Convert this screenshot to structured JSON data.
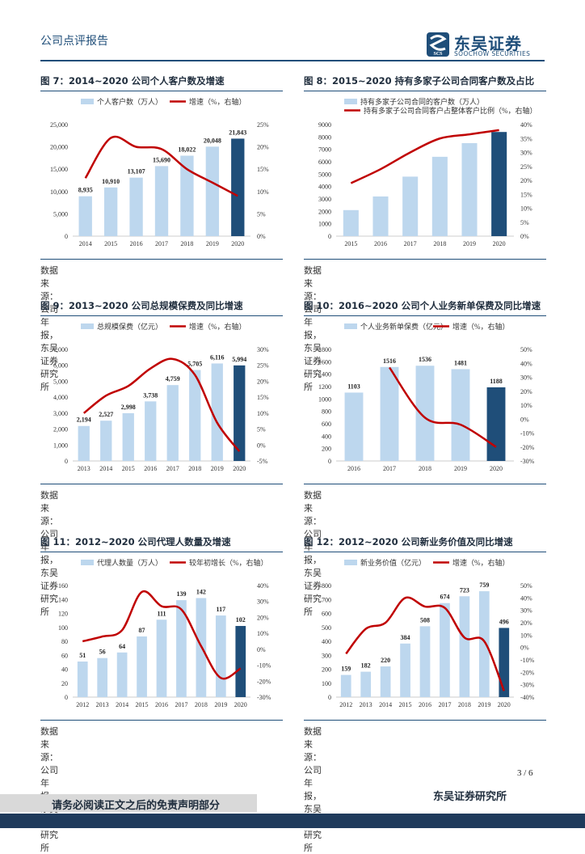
{
  "header": {
    "report_type": "公司点评报告",
    "logo_cn": "东吴证券",
    "logo_en": "SOOCHOW SECURITIES",
    "logo_mark_text": "SCS"
  },
  "colors": {
    "bar": "#bdd7ee",
    "bar_highlight": "#1f4e79",
    "line": "#c00000",
    "rule": "#1f4e79"
  },
  "source_text": "数据来源：公司年报，东吴证券研究所",
  "page": {
    "number": "3 / 6"
  },
  "footer": {
    "disclaimer": "请务必阅读正文之后的免责声明部分",
    "firm": "东吴证券研究所"
  },
  "charts": [
    {
      "id": "fig7",
      "title": "图 7：2014~2020 公司个人客户数及增速",
      "bar_legend": "个人客户数（万人）",
      "line_legend": "增速（%，右轴）",
      "categories": [
        "2014",
        "2015",
        "2016",
        "2017",
        "2018",
        "2019",
        "2020"
      ],
      "bar_values": [
        8935,
        10910,
        13107,
        15690,
        18022,
        20048,
        21843
      ],
      "bar_labels": [
        "8,935",
        "10,910",
        "13,107",
        "15,690",
        "18,022",
        "20,048",
        "21,843"
      ],
      "line_values": [
        13,
        22,
        20,
        19.5,
        15,
        12,
        9
      ],
      "left_ticks": [
        "0",
        "5,000",
        "10,000",
        "15,000",
        "20,000",
        "25,000"
      ],
      "left_min": 0,
      "left_max": 25000,
      "right_ticks": [
        "0%",
        "5%",
        "10%",
        "15%",
        "20%",
        "25%"
      ],
      "right_min": 0,
      "right_max": 25,
      "highlight_last": true,
      "line_start": 0
    },
    {
      "id": "fig8",
      "title": "图 8：2015~2020 持有多家子公司合同客户数及占比",
      "bar_legend": "持有多家子公司合同的客户数（万人）",
      "line_legend": "持有多家子公司合同客户占整体客户比例（%，右轴）",
      "categories": [
        "2015",
        "2016",
        "2017",
        "2018",
        "2019",
        "2020"
      ],
      "bar_values": [
        2100,
        3200,
        4800,
        6400,
        7500,
        8400
      ],
      "bar_labels": [
        "",
        "",
        "",
        "",
        "",
        ""
      ],
      "line_values": [
        19,
        24,
        30,
        35,
        36.5,
        38
      ],
      "left_ticks": [
        "0",
        "1000",
        "2000",
        "3000",
        "4000",
        "5000",
        "6000",
        "7000",
        "8000",
        "9000"
      ],
      "left_min": 0,
      "left_max": 9000,
      "right_ticks": [
        "0%",
        "5%",
        "10%",
        "15%",
        "20%",
        "25%",
        "30%",
        "35%",
        "40%"
      ],
      "right_min": 0,
      "right_max": 40,
      "highlight_last": true,
      "line_start": 0
    },
    {
      "id": "fig9",
      "title": "图 9：2013~2020 公司总规模保费及同比增速",
      "bar_legend": "总规模保费（亿元）",
      "line_legend": "增速（%，右轴）",
      "categories": [
        "2013",
        "2014",
        "2015",
        "2016",
        "2017",
        "2018",
        "2019",
        "2020"
      ],
      "bar_values": [
        2194,
        2527,
        2998,
        3738,
        4759,
        5705,
        6116,
        5994
      ],
      "bar_labels": [
        "2,194",
        "2,527",
        "2,998",
        "3,738",
        "4,759",
        "5,705",
        "6,116",
        "5,994"
      ],
      "line_values": [
        10,
        15.5,
        18.5,
        24,
        27,
        22,
        7,
        -2
      ],
      "left_ticks": [
        "0",
        "1,000",
        "2,000",
        "3,000",
        "4,000",
        "5,000",
        "6,000",
        "7,000"
      ],
      "left_min": 0,
      "left_max": 7000,
      "right_ticks": [
        "-5%",
        "0%",
        "5%",
        "10%",
        "15%",
        "20%",
        "25%",
        "30%"
      ],
      "right_min": -5,
      "right_max": 30,
      "highlight_last": true,
      "line_start": 0
    },
    {
      "id": "fig10",
      "title": "图 10：2016~2020 公司个人业务新单保费及同比增速",
      "bar_legend": "个人业务新单保费（亿元）",
      "line_legend": "增速（%，右轴）",
      "categories": [
        "2016",
        "2017",
        "2018",
        "2019",
        "2020"
      ],
      "bar_values": [
        1103,
        1516,
        1536,
        1481,
        1188
      ],
      "bar_labels": [
        "1103",
        "1516",
        "1536",
        "1481",
        "1188"
      ],
      "line_values": [
        null,
        37,
        1,
        -4,
        -20
      ],
      "left_ticks": [
        "0",
        "200",
        "400",
        "600",
        "800",
        "1000",
        "1200",
        "1400",
        "1600",
        "1800"
      ],
      "left_min": 0,
      "left_max": 1800,
      "right_ticks": [
        "-30%",
        "-20%",
        "-10%",
        "0%",
        "10%",
        "20%",
        "30%",
        "40%",
        "50%"
      ],
      "right_min": -30,
      "right_max": 50,
      "highlight_last": true,
      "line_start": 1
    },
    {
      "id": "fig11",
      "title": "图 11：2012~2020 公司代理人数量及增速",
      "bar_legend": "代理人数量（万人）",
      "line_legend": "较年初增长（%，右轴）",
      "categories": [
        "2012",
        "2013",
        "2014",
        "2015",
        "2016",
        "2017",
        "2018",
        "2019",
        "2020"
      ],
      "bar_values": [
        51,
        56,
        64,
        87,
        111,
        139,
        142,
        117,
        102
      ],
      "bar_labels": [
        "51",
        "56",
        "64",
        "87",
        "111",
        "139",
        "142",
        "117",
        "102"
      ],
      "line_values": [
        5,
        8,
        12,
        36,
        27,
        25,
        2,
        -18,
        -12
      ],
      "left_ticks": [
        "0",
        "20",
        "40",
        "60",
        "80",
        "100",
        "120",
        "140",
        "160"
      ],
      "left_min": 0,
      "left_max": 160,
      "right_ticks": [
        "-30%",
        "-20%",
        "-10%",
        "0%",
        "10%",
        "20%",
        "30%",
        "40%"
      ],
      "right_min": -30,
      "right_max": 40,
      "highlight_last": true,
      "line_start": 0
    },
    {
      "id": "fig12",
      "title": "图 12：2012~2020 公司新业务价值及同比增速",
      "bar_legend": "新业务价值（亿元）",
      "line_legend": "增速（%，右轴）",
      "categories": [
        "2012",
        "2013",
        "2014",
        "2015",
        "2016",
        "2017",
        "2018",
        "2019",
        "2020"
      ],
      "bar_values": [
        159,
        182,
        220,
        384,
        508,
        674,
        723,
        759,
        496
      ],
      "bar_labels": [
        "159",
        "182",
        "220",
        "384",
        "508",
        "674",
        "723",
        "759",
        "496"
      ],
      "line_values": [
        -5,
        15,
        20,
        40,
        33,
        32,
        8,
        5,
        -35
      ],
      "left_ticks": [
        "0",
        "100",
        "200",
        "300",
        "400",
        "500",
        "600",
        "700",
        "800"
      ],
      "left_min": 0,
      "left_max": 800,
      "right_ticks": [
        "-40%",
        "-30%",
        "-20%",
        "-10%",
        "0%",
        "10%",
        "20%",
        "30%",
        "40%",
        "50%"
      ],
      "right_min": -40,
      "right_max": 50,
      "highlight_last": true,
      "line_start": 0
    }
  ],
  "chart_data": [
    {
      "type": "bar",
      "title": "图 7：2014~2020 公司个人客户数及增速",
      "categories": [
        "2014",
        "2015",
        "2016",
        "2017",
        "2018",
        "2019",
        "2020"
      ],
      "series": [
        {
          "name": "个人客户数（万人）",
          "values": [
            8935,
            10910,
            13107,
            15690,
            18022,
            20048,
            21843
          ]
        },
        {
          "name": "增速（%，右轴）",
          "type": "line",
          "values": [
            13,
            22,
            20,
            19.5,
            15,
            12,
            9
          ]
        }
      ],
      "ylim": [
        0,
        25000
      ],
      "y2lim": [
        0,
        25
      ]
    },
    {
      "type": "bar",
      "title": "图 8：2015~2020 持有多家子公司合同客户数及占比",
      "categories": [
        "2015",
        "2016",
        "2017",
        "2018",
        "2019",
        "2020"
      ],
      "series": [
        {
          "name": "持有多家子公司合同的客户数（万人）",
          "values": [
            2100,
            3200,
            4800,
            6400,
            7500,
            8400
          ]
        },
        {
          "name": "持有多家子公司合同客户占整体客户比例（%，右轴）",
          "type": "line",
          "values": [
            19,
            24,
            30,
            35,
            36.5,
            38
          ]
        }
      ],
      "ylim": [
        0,
        9000
      ],
      "y2lim": [
        0,
        40
      ]
    },
    {
      "type": "bar",
      "title": "图 9：2013~2020 公司总规模保费及同比增速",
      "categories": [
        "2013",
        "2014",
        "2015",
        "2016",
        "2017",
        "2018",
        "2019",
        "2020"
      ],
      "series": [
        {
          "name": "总规模保费（亿元）",
          "values": [
            2194,
            2527,
            2998,
            3738,
            4759,
            5705,
            6116,
            5994
          ]
        },
        {
          "name": "增速（%，右轴）",
          "type": "line",
          "values": [
            10,
            15.5,
            18.5,
            24,
            27,
            22,
            7,
            -2
          ]
        }
      ],
      "ylim": [
        0,
        7000
      ],
      "y2lim": [
        -5,
        30
      ]
    },
    {
      "type": "bar",
      "title": "图 10：2016~2020 公司个人业务新单保费及同比增速",
      "categories": [
        "2016",
        "2017",
        "2018",
        "2019",
        "2020"
      ],
      "series": [
        {
          "name": "个人业务新单保费（亿元）",
          "values": [
            1103,
            1516,
            1536,
            1481,
            1188
          ]
        },
        {
          "name": "增速（%，右轴）",
          "type": "line",
          "values": [
            null,
            37,
            1,
            -4,
            -20
          ]
        }
      ],
      "ylim": [
        0,
        1800
      ],
      "y2lim": [
        -30,
        50
      ]
    },
    {
      "type": "bar",
      "title": "图 11：2012~2020 公司代理人数量及增速",
      "categories": [
        "2012",
        "2013",
        "2014",
        "2015",
        "2016",
        "2017",
        "2018",
        "2019",
        "2020"
      ],
      "series": [
        {
          "name": "代理人数量（万人）",
          "values": [
            51,
            56,
            64,
            87,
            111,
            139,
            142,
            117,
            102
          ]
        },
        {
          "name": "较年初增长（%，右轴）",
          "type": "line",
          "values": [
            5,
            8,
            12,
            36,
            27,
            25,
            2,
            -18,
            -12
          ]
        }
      ],
      "ylim": [
        0,
        160
      ],
      "y2lim": [
        -30,
        40
      ]
    },
    {
      "type": "bar",
      "title": "图 12：2012~2020 公司新业务价值及同比增速",
      "categories": [
        "2012",
        "2013",
        "2014",
        "2015",
        "2016",
        "2017",
        "2018",
        "2019",
        "2020"
      ],
      "series": [
        {
          "name": "新业务价值（亿元）",
          "values": [
            159,
            182,
            220,
            384,
            508,
            674,
            723,
            759,
            496
          ]
        },
        {
          "name": "增速（%，右轴）",
          "type": "line",
          "values": [
            -5,
            15,
            20,
            40,
            33,
            32,
            8,
            5,
            -35
          ]
        }
      ],
      "ylim": [
        0,
        800
      ],
      "y2lim": [
        -40,
        50
      ]
    }
  ]
}
